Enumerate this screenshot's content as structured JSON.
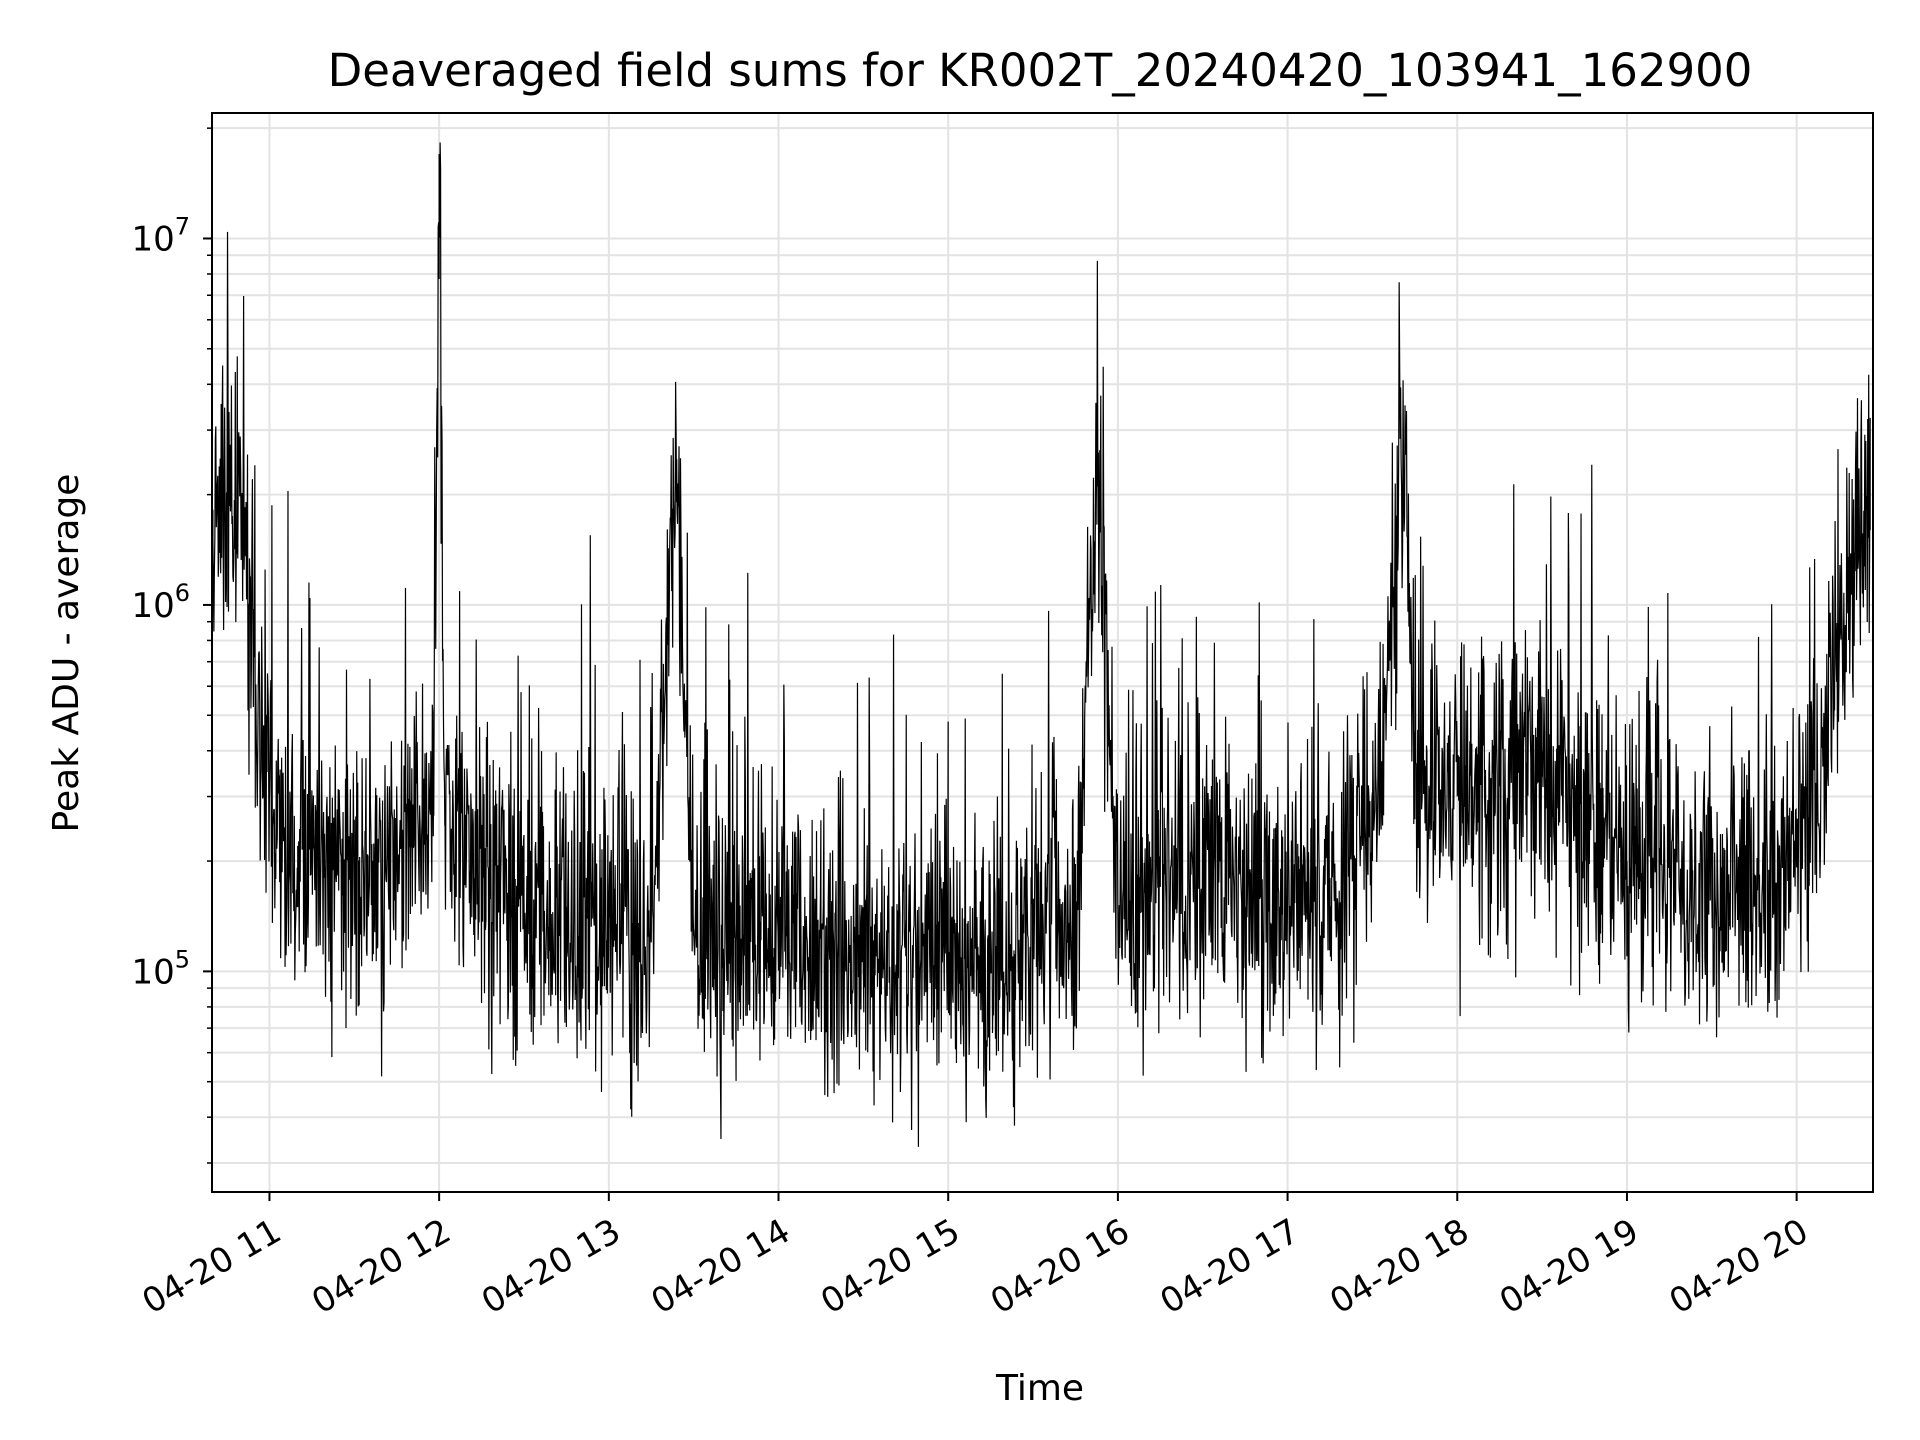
{
  "chart_data": {
    "type": "line",
    "title": "Deaveraged field sums for KR002T_20240420_103941_162900",
    "xlabel": "Time",
    "ylabel": "Peak ADU - average",
    "yscale": "log",
    "ylim": [
      25000,
      22000000
    ],
    "xlim": [
      "2024-04-20 10:39:41",
      "2024-04-20 20:27:00"
    ],
    "grid": true,
    "line_color": "#000000",
    "x_ticks": [
      "2024-04-20 11:00",
      "2024-04-20 12:00",
      "2024-04-20 13:00",
      "2024-04-20 14:00",
      "2024-04-20 15:00",
      "2024-04-20 16:00",
      "2024-04-20 17:00",
      "2024-04-20 18:00",
      "2024-04-20 19:00",
      "2024-04-20 20:00"
    ],
    "x_tick_labels": [
      "04-20 11",
      "04-20 12",
      "04-20 13",
      "04-20 14",
      "04-20 15",
      "04-20 16",
      "04-20 17",
      "04-20 18",
      "04-20 19",
      "04-20 20"
    ],
    "y_ticks": [
      {
        "value": 100000,
        "base": "10",
        "exp": "5"
      },
      {
        "value": 1000000,
        "base": "10",
        "exp": "6"
      },
      {
        "value": 10000000,
        "base": "10",
        "exp": "7"
      }
    ],
    "series": [
      {
        "x": [
          "2024-04-20 10:40",
          "2024-04-20 10:45",
          "2024-04-20 10:50",
          "2024-04-20 10:55",
          "2024-04-20 11:00",
          "2024-04-20 11:10",
          "2024-04-20 11:20",
          "2024-04-20 11:30",
          "2024-04-20 11:40",
          "2024-04-20 11:50",
          "2024-04-20 11:58",
          "2024-04-20 12:00",
          "2024-04-20 12:02",
          "2024-04-20 12:15",
          "2024-04-20 12:30",
          "2024-04-20 12:45",
          "2024-04-20 13:00",
          "2024-04-20 13:15",
          "2024-04-20 13:24",
          "2024-04-20 13:30",
          "2024-04-20 13:45",
          "2024-04-20 14:00",
          "2024-04-20 14:15",
          "2024-04-20 14:30",
          "2024-04-20 14:45",
          "2024-04-20 15:00",
          "2024-04-20 15:15",
          "2024-04-20 15:30",
          "2024-04-20 15:45",
          "2024-04-20 15:53",
          "2024-04-20 16:00",
          "2024-04-20 16:15",
          "2024-04-20 16:30",
          "2024-04-20 16:45",
          "2024-04-20 17:00",
          "2024-04-20 17:15",
          "2024-04-20 17:30",
          "2024-04-20 17:42",
          "2024-04-20 17:45",
          "2024-04-20 18:00",
          "2024-04-20 18:15",
          "2024-04-20 18:30",
          "2024-04-20 18:45",
          "2024-04-20 19:00",
          "2024-04-20 19:15",
          "2024-04-20 19:30",
          "2024-04-20 19:45",
          "2024-04-20 20:00",
          "2024-04-20 20:10",
          "2024-04-20 20:20",
          "2024-04-20 20:26"
        ],
        "y": [
          1500000,
          2000000,
          1800000,
          600000,
          300000,
          220000,
          180000,
          200000,
          170000,
          230000,
          300000,
          17000000,
          250000,
          180000,
          160000,
          150000,
          140000,
          120000,
          2500000,
          130000,
          120000,
          140000,
          110000,
          100000,
          110000,
          120000,
          100000,
          130000,
          140000,
          2400000,
          150000,
          170000,
          160000,
          150000,
          160000,
          180000,
          200000,
          2700000,
          260000,
          300000,
          320000,
          340000,
          260000,
          200000,
          180000,
          160000,
          150000,
          200000,
          400000,
          1400000,
          1600000
        ]
      }
    ]
  }
}
